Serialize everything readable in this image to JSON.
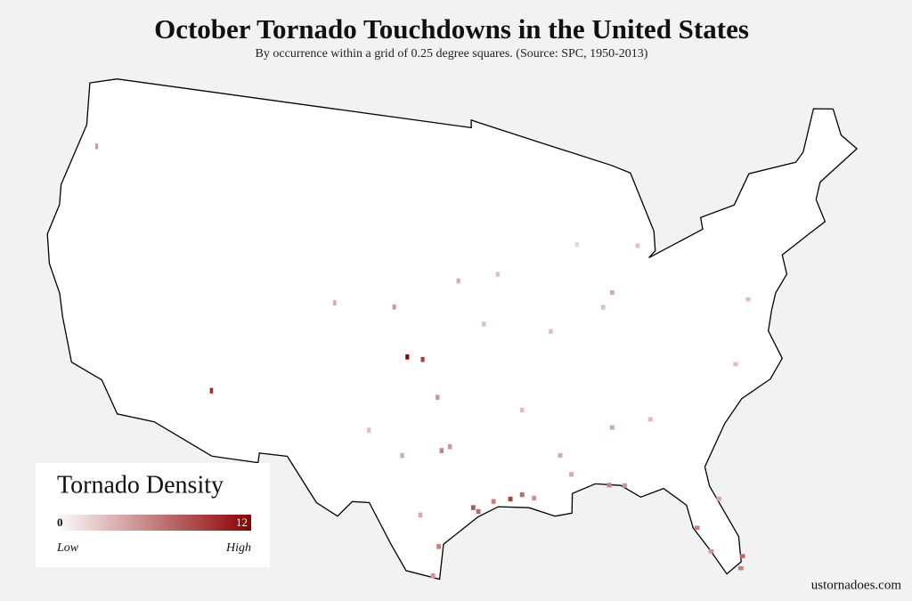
{
  "header": {
    "title": "October Tornado Touchdowns in the United States",
    "subtitle": "By occurrence within a grid of  0.25 degree squares. (Source: SPC, 1950-2013)"
  },
  "map": {
    "cells": [
      {
        "lon": -95.4,
        "lat": 29.8,
        "value": 8
      },
      {
        "lon": -95.1,
        "lat": 29.6,
        "value": 7
      },
      {
        "lon": -94.2,
        "lat": 30.1,
        "value": 6
      },
      {
        "lon": -93.2,
        "lat": 30.2,
        "value": 9
      },
      {
        "lon": -92.5,
        "lat": 30.4,
        "value": 7
      },
      {
        "lon": -91.8,
        "lat": 30.2,
        "value": 5
      },
      {
        "lon": -99.6,
        "lat": 37.4,
        "value": 12
      },
      {
        "lon": -98.6,
        "lat": 37.3,
        "value": 9
      },
      {
        "lon": -111.8,
        "lat": 34.7,
        "value": 10
      },
      {
        "lon": -97.3,
        "lat": 32.7,
        "value": 6
      },
      {
        "lon": -96.8,
        "lat": 32.9,
        "value": 5
      },
      {
        "lon": -97.6,
        "lat": 35.4,
        "value": 5
      },
      {
        "lon": -97.4,
        "lat": 27.8,
        "value": 6
      },
      {
        "lon": -97.7,
        "lat": 26.3,
        "value": 5
      },
      {
        "lon": -87.3,
        "lat": 30.6,
        "value": 6
      },
      {
        "lon": -86.4,
        "lat": 30.5,
        "value": 5
      },
      {
        "lon": -82.5,
        "lat": 27.9,
        "value": 6
      },
      {
        "lon": -80.2,
        "lat": 26.1,
        "value": 7
      },
      {
        "lon": -81.9,
        "lat": 26.6,
        "value": 5
      },
      {
        "lon": -90.1,
        "lat": 32.3,
        "value": 4
      },
      {
        "lon": -89.5,
        "lat": 31.3,
        "value": 4
      },
      {
        "lon": -86.8,
        "lat": 33.5,
        "value": 4
      },
      {
        "lon": -85.9,
        "lat": 40.3,
        "value": 4
      },
      {
        "lon": -86.6,
        "lat": 39.6,
        "value": 3
      },
      {
        "lon": -96.3,
        "lat": 41.3,
        "value": 4
      },
      {
        "lon": -100.6,
        "lat": 39.9,
        "value": 5
      },
      {
        "lon": -104.6,
        "lat": 39.9,
        "value": 4
      },
      {
        "lon": -123.0,
        "lat": 45.5,
        "value": 5
      },
      {
        "lon": -92.3,
        "lat": 34.7,
        "value": 3
      },
      {
        "lon": -78.6,
        "lat": 35.8,
        "value": 3
      },
      {
        "lon": -77.0,
        "lat": 38.9,
        "value": 3
      },
      {
        "lon": -84.4,
        "lat": 33.7,
        "value": 3
      },
      {
        "lon": -83.8,
        "lat": 42.5,
        "value": 3
      },
      {
        "lon": -93.6,
        "lat": 41.6,
        "value": 3
      },
      {
        "lon": -94.6,
        "lat": 39.1,
        "value": 3
      },
      {
        "lon": -88.0,
        "lat": 42.9,
        "value": 2
      },
      {
        "lon": -90.2,
        "lat": 38.6,
        "value": 3
      },
      {
        "lon": -98.5,
        "lat": 29.4,
        "value": 4
      },
      {
        "lon": -101.8,
        "lat": 33.6,
        "value": 3
      },
      {
        "lon": -99.7,
        "lat": 32.4,
        "value": 4
      },
      {
        "lon": -81.0,
        "lat": 29.2,
        "value": 4
      },
      {
        "lon": -80.4,
        "lat": 25.5,
        "value": 6
      }
    ]
  },
  "legend": {
    "title": "Tornado Density",
    "min": 0,
    "max": 12,
    "low_label": "Low",
    "high_label": "High",
    "color_low": "#ffffff",
    "color_high": "#8b0000"
  },
  "footer": {
    "credit": "ustornadoes.com"
  }
}
